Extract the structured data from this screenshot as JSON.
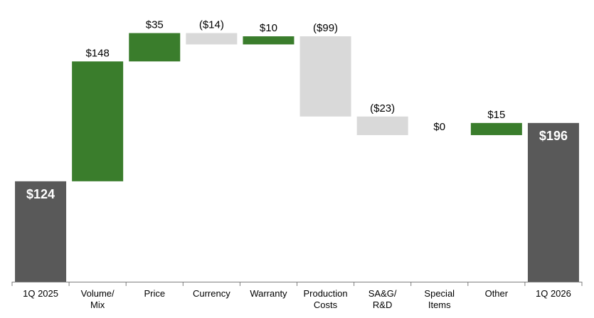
{
  "chart_data": {
    "type": "bar",
    "subtype": "waterfall",
    "title": "",
    "xlabel": "",
    "ylabel": "",
    "grid": false,
    "legend": "none",
    "categories": [
      [
        "1Q 2025"
      ],
      [
        "Volume/",
        "Mix"
      ],
      [
        "Price"
      ],
      [
        "Currency"
      ],
      [
        "Warranty"
      ],
      [
        "Production",
        "Costs"
      ],
      [
        "SA&G/",
        "R&D"
      ],
      [
        "Special",
        "Items"
      ],
      [
        "Other"
      ],
      [
        "1Q 2026"
      ]
    ],
    "steps": [
      {
        "kind": "total",
        "value": 124,
        "label": "$124"
      },
      {
        "kind": "delta",
        "value": 148,
        "label": "$148"
      },
      {
        "kind": "delta",
        "value": 35,
        "label": "$35"
      },
      {
        "kind": "delta",
        "value": -14,
        "label": "($14)"
      },
      {
        "kind": "delta",
        "value": 10,
        "label": "$10"
      },
      {
        "kind": "delta",
        "value": -99,
        "label": "($99)"
      },
      {
        "kind": "delta",
        "value": -23,
        "label": "($23)"
      },
      {
        "kind": "delta",
        "value": 0,
        "label": "$0"
      },
      {
        "kind": "delta",
        "value": 15,
        "label": "$15"
      },
      {
        "kind": "total",
        "value": 196,
        "label": "$196"
      }
    ],
    "ylim": [
      0,
      325
    ],
    "colors": {
      "total": "#595959",
      "increase": "#3a7d2c",
      "decrease": "#d9d9d9",
      "axis": "#7f7f7f"
    }
  }
}
